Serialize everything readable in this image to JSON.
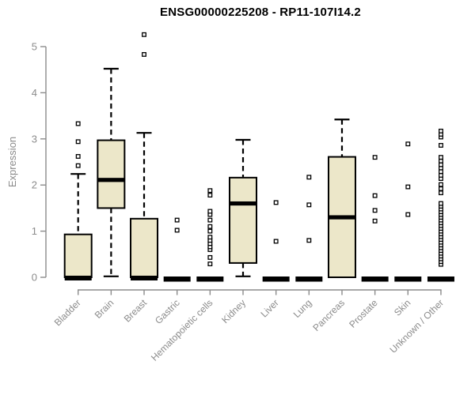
{
  "figure": {
    "title": "ENSG00000225208 - RP11-107I14.2"
  },
  "chart_data": {
    "type": "boxplot",
    "title": "ENSG00000225208 - RP11-107I14.2",
    "xlabel": "",
    "ylabel": "Expression",
    "ylim": [
      0,
      5.4
    ],
    "yticks": [
      0,
      1,
      2,
      3,
      4,
      5
    ],
    "grid": false,
    "legend": null,
    "colors": {
      "box_fill": "#ece7c9",
      "box_border": "#000000",
      "median": "#000000",
      "whisker": "#000000",
      "outlier_fill": "#ffffff",
      "axis": "#8b8b8b",
      "label_text": "#8b8b8b",
      "title_text": "#000000",
      "background": "#ffffff"
    },
    "categories": [
      "Bladder",
      "Brain",
      "Breast",
      "Gastric",
      "Hematopoietic cells",
      "Kidney",
      "Liver",
      "Lung",
      "Pancreas",
      "Prostate",
      "Skin",
      "Unknown / Other"
    ],
    "series": [
      {
        "category": "Bladder",
        "q1": 0,
        "median": 0,
        "q3": 0.93,
        "whisker_low": 0,
        "whisker_high": 2.24,
        "outliers": [
          2.42,
          2.62,
          2.94,
          3.33
        ]
      },
      {
        "category": "Brain",
        "q1": 1.5,
        "median": 2.11,
        "q3": 2.97,
        "whisker_low": 0.02,
        "whisker_high": 4.52,
        "outliers": []
      },
      {
        "category": "Breast",
        "q1": 0,
        "median": 0,
        "q3": 1.27,
        "whisker_low": 0,
        "whisker_high": 3.13,
        "outliers": [
          4.83,
          5.26
        ]
      },
      {
        "category": "Gastric",
        "q1": 0,
        "median": 0,
        "q3": 0,
        "whisker_low": 0,
        "whisker_high": 0,
        "outliers": [
          1.02,
          1.24
        ]
      },
      {
        "category": "Hematopoietic cells",
        "q1": 0,
        "median": 0,
        "q3": 0,
        "whisker_low": 0,
        "whisker_high": 0,
        "outliers": [
          0.29,
          0.43,
          0.6,
          0.66,
          0.73,
          0.8,
          0.87,
          1.0,
          1.1,
          1.24,
          1.36,
          1.43,
          1.78,
          1.88
        ]
      },
      {
        "category": "Kidney",
        "q1": 0.31,
        "median": 1.6,
        "q3": 2.16,
        "whisker_low": 0.02,
        "whisker_high": 2.98,
        "outliers": []
      },
      {
        "category": "Liver",
        "q1": 0,
        "median": 0,
        "q3": 0,
        "whisker_low": 0,
        "whisker_high": 0,
        "outliers": [
          0.78,
          1.62
        ]
      },
      {
        "category": "Lung",
        "q1": 0,
        "median": 0,
        "q3": 0,
        "whisker_low": 0,
        "whisker_high": 0,
        "outliers": [
          0.8,
          1.57,
          2.17
        ]
      },
      {
        "category": "Pancreas",
        "q1": 0,
        "median": 1.3,
        "q3": 2.61,
        "whisker_low": 0,
        "whisker_high": 3.42,
        "outliers": []
      },
      {
        "category": "Prostate",
        "q1": 0,
        "median": 0,
        "q3": 0,
        "whisker_low": 0,
        "whisker_high": 0,
        "outliers": [
          1.22,
          1.45,
          1.77,
          2.6
        ]
      },
      {
        "category": "Skin",
        "q1": 0,
        "median": 0,
        "q3": 0,
        "whisker_low": 0,
        "whisker_high": 0,
        "outliers": [
          1.36,
          1.96,
          2.89
        ]
      },
      {
        "category": "Unknown / Other",
        "q1": 0,
        "median": 0,
        "q3": 0,
        "whisker_low": 0,
        "whisker_high": 0,
        "outliers": [
          0.28,
          0.34,
          0.4,
          0.46,
          0.52,
          0.58,
          0.64,
          0.7,
          0.76,
          0.82,
          0.88,
          0.94,
          1.0,
          1.06,
          1.12,
          1.18,
          1.24,
          1.3,
          1.36,
          1.42,
          1.48,
          1.54,
          1.6,
          1.83,
          1.92,
          2.01,
          2.14,
          2.21,
          2.29,
          2.37,
          2.44,
          2.52,
          2.6,
          2.86,
          3.04,
          3.1,
          3.17
        ]
      }
    ]
  }
}
